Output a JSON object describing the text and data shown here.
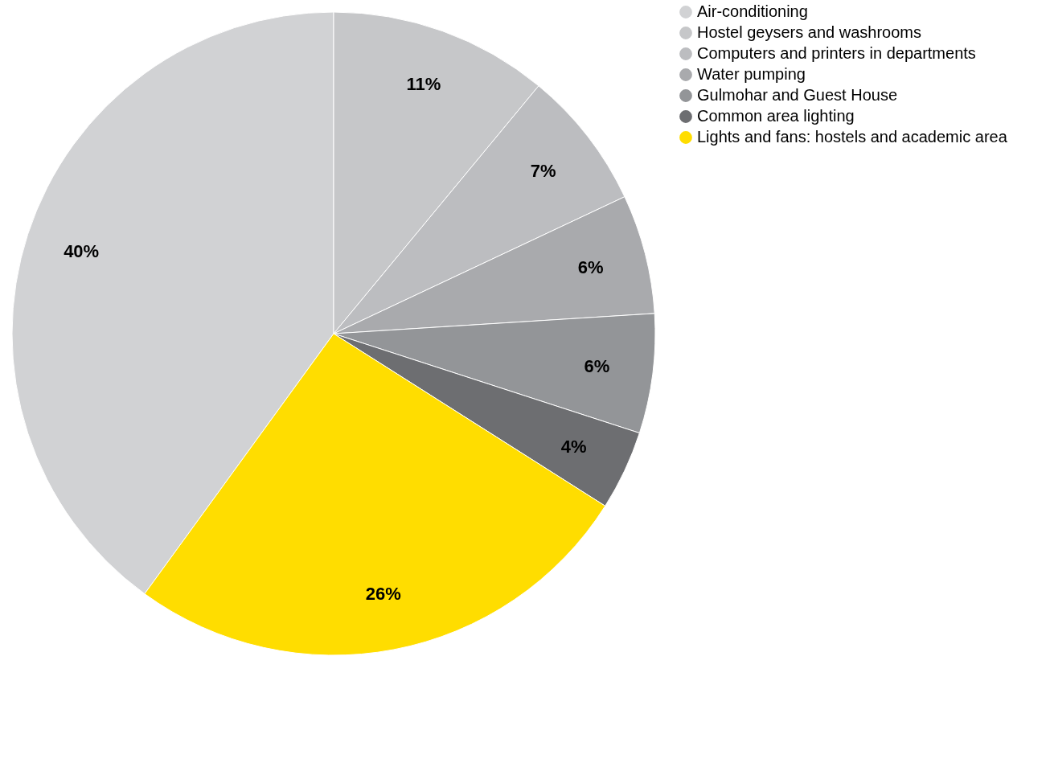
{
  "chart_data": {
    "type": "pie",
    "categories": [
      "Air-conditioning",
      "Hostel geysers and washrooms",
      "Computers and printers in departments",
      "Water pumping",
      "Gulmohar and Guest House",
      "Common area lighting",
      "Lights and fans: hostels and academic area"
    ],
    "values": [
      40,
      11,
      7,
      6,
      6,
      4,
      26
    ],
    "colors": [
      "#d1d2d4",
      "#c6c7c9",
      "#bcbdc0",
      "#a9aaad",
      "#939598",
      "#6d6e71",
      "#ffdd00"
    ],
    "value_labels": [
      "40%",
      "11%",
      "7%",
      "6%",
      "6%",
      "4%",
      "26%"
    ],
    "legend": "right"
  }
}
